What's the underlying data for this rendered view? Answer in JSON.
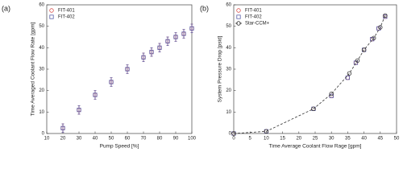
{
  "chart_data": [
    {
      "type": "scatter",
      "panel_label": "(a)",
      "xlabel": "Pump Speed [%]",
      "ylabel": "Time Averaged Coolant Flow Rate [gpm]",
      "xlim": [
        10,
        100
      ],
      "xticks": [
        10,
        20,
        30,
        40,
        50,
        60,
        70,
        80,
        90,
        100
      ],
      "ylim": [
        0,
        60
      ],
      "yticks": [
        0,
        10,
        20,
        30,
        40,
        50,
        60
      ],
      "legend": "upper-left",
      "series": [
        {
          "name": "FIT-401",
          "color": "#d9534f",
          "marker": "circle",
          "x": [
            20,
            30,
            40,
            50,
            60,
            70,
            75,
            80,
            85,
            90,
            95,
            100
          ],
          "values": [
            2.5,
            11,
            18,
            24,
            30,
            35.5,
            38,
            40,
            43,
            45,
            46.5,
            49
          ],
          "errors": [
            2,
            2,
            2,
            2,
            2,
            2,
            2,
            2,
            2,
            2,
            2,
            2
          ]
        },
        {
          "name": "FIT-402",
          "color": "#5b5fa8",
          "marker": "square",
          "x": [
            20,
            30,
            40,
            50,
            60,
            70,
            75,
            80,
            85,
            90,
            95,
            100
          ],
          "values": [
            2.5,
            11,
            18,
            24,
            30,
            35.5,
            38,
            40,
            43,
            45,
            46.5,
            49
          ],
          "errors": [
            2,
            2,
            2,
            2,
            2,
            2,
            2,
            2,
            2,
            2,
            2,
            2
          ]
        }
      ]
    },
    {
      "type": "scatter",
      "panel_label": "(b)",
      "xlabel": "Time Average Coolant Flow Rage [gpm]",
      "ylabel": "System Pressure Drop [psid]",
      "xlim": [
        0,
        50
      ],
      "xticks": [
        0,
        5,
        10,
        15,
        20,
        25,
        30,
        35,
        40,
        45,
        50
      ],
      "ylim": [
        0,
        60
      ],
      "yticks": [
        0,
        10,
        20,
        30,
        40,
        50,
        60
      ],
      "legend": "upper-left",
      "series": [
        {
          "name": "FIT-401",
          "color": "#d9534f",
          "marker": "circle",
          "x": [
            0,
            10,
            24.5,
            30,
            35,
            37.5,
            40,
            42.5,
            44.5,
            46.5
          ],
          "values": [
            0,
            1,
            11.5,
            17.5,
            26,
            33,
            39,
            44,
            49,
            54.5
          ]
        },
        {
          "name": "FIT-402",
          "color": "#5b5fa8",
          "marker": "square",
          "x": [
            0,
            10,
            24.5,
            30,
            35,
            37.5,
            40,
            42.5,
            44.5,
            46.5
          ],
          "values": [
            0,
            1,
            11.5,
            17.5,
            26,
            33,
            39,
            44,
            49,
            54.5
          ]
        },
        {
          "name": "Star-CCM+",
          "color": "#333333",
          "marker": "circle",
          "line": "dashed",
          "x": [
            0,
            10,
            24.5,
            30,
            35.5,
            38,
            40,
            43,
            45,
            46.5
          ],
          "values": [
            0,
            1,
            11.5,
            18.5,
            28,
            34,
            39,
            44.5,
            49.5,
            55
          ]
        }
      ]
    }
  ]
}
